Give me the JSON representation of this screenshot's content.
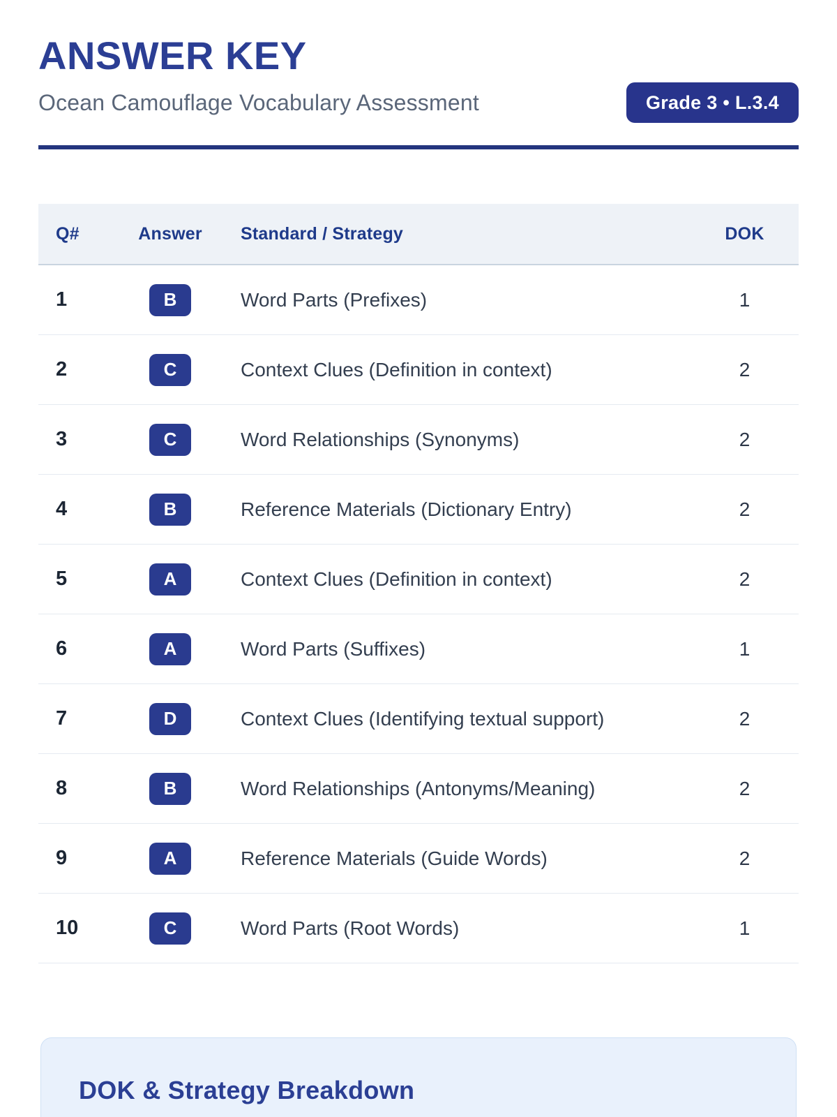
{
  "header": {
    "title": "ANSWER KEY",
    "subtitle": "Ocean Camouflage Vocabulary Assessment",
    "badge": "Grade 3 • L.3.4"
  },
  "colors": {
    "brand_navy": "#2a3b8f",
    "title_blue": "#2b3e94",
    "table_header_text": "#1e3a8a",
    "table_header_bg": "#eef2f7",
    "subtitle_gray": "#5a6679",
    "breakdown_bg": "#e9f1fc"
  },
  "table": {
    "columns": [
      "Q#",
      "Answer",
      "Standard / Strategy",
      "DOK"
    ],
    "rows": [
      {
        "q": "1",
        "answer": "B",
        "strategy": "Word Parts (Prefixes)",
        "dok": "1"
      },
      {
        "q": "2",
        "answer": "C",
        "strategy": "Context Clues (Definition in context)",
        "dok": "2"
      },
      {
        "q": "3",
        "answer": "C",
        "strategy": "Word Relationships (Synonyms)",
        "dok": "2"
      },
      {
        "q": "4",
        "answer": "B",
        "strategy": "Reference Materials (Dictionary Entry)",
        "dok": "2"
      },
      {
        "q": "5",
        "answer": "A",
        "strategy": "Context Clues (Definition in context)",
        "dok": "2"
      },
      {
        "q": "6",
        "answer": "A",
        "strategy": "Word Parts (Suffixes)",
        "dok": "1"
      },
      {
        "q": "7",
        "answer": "D",
        "strategy": "Context Clues (Identifying textual support)",
        "dok": "2"
      },
      {
        "q": "8",
        "answer": "B",
        "strategy": "Word Relationships (Antonyms/Meaning)",
        "dok": "2"
      },
      {
        "q": "9",
        "answer": "A",
        "strategy": "Reference Materials (Guide Words)",
        "dok": "2"
      },
      {
        "q": "10",
        "answer": "C",
        "strategy": "Word Parts (Root Words)",
        "dok": "1"
      }
    ]
  },
  "breakdown": {
    "heading": "DOK & Strategy Breakdown"
  }
}
